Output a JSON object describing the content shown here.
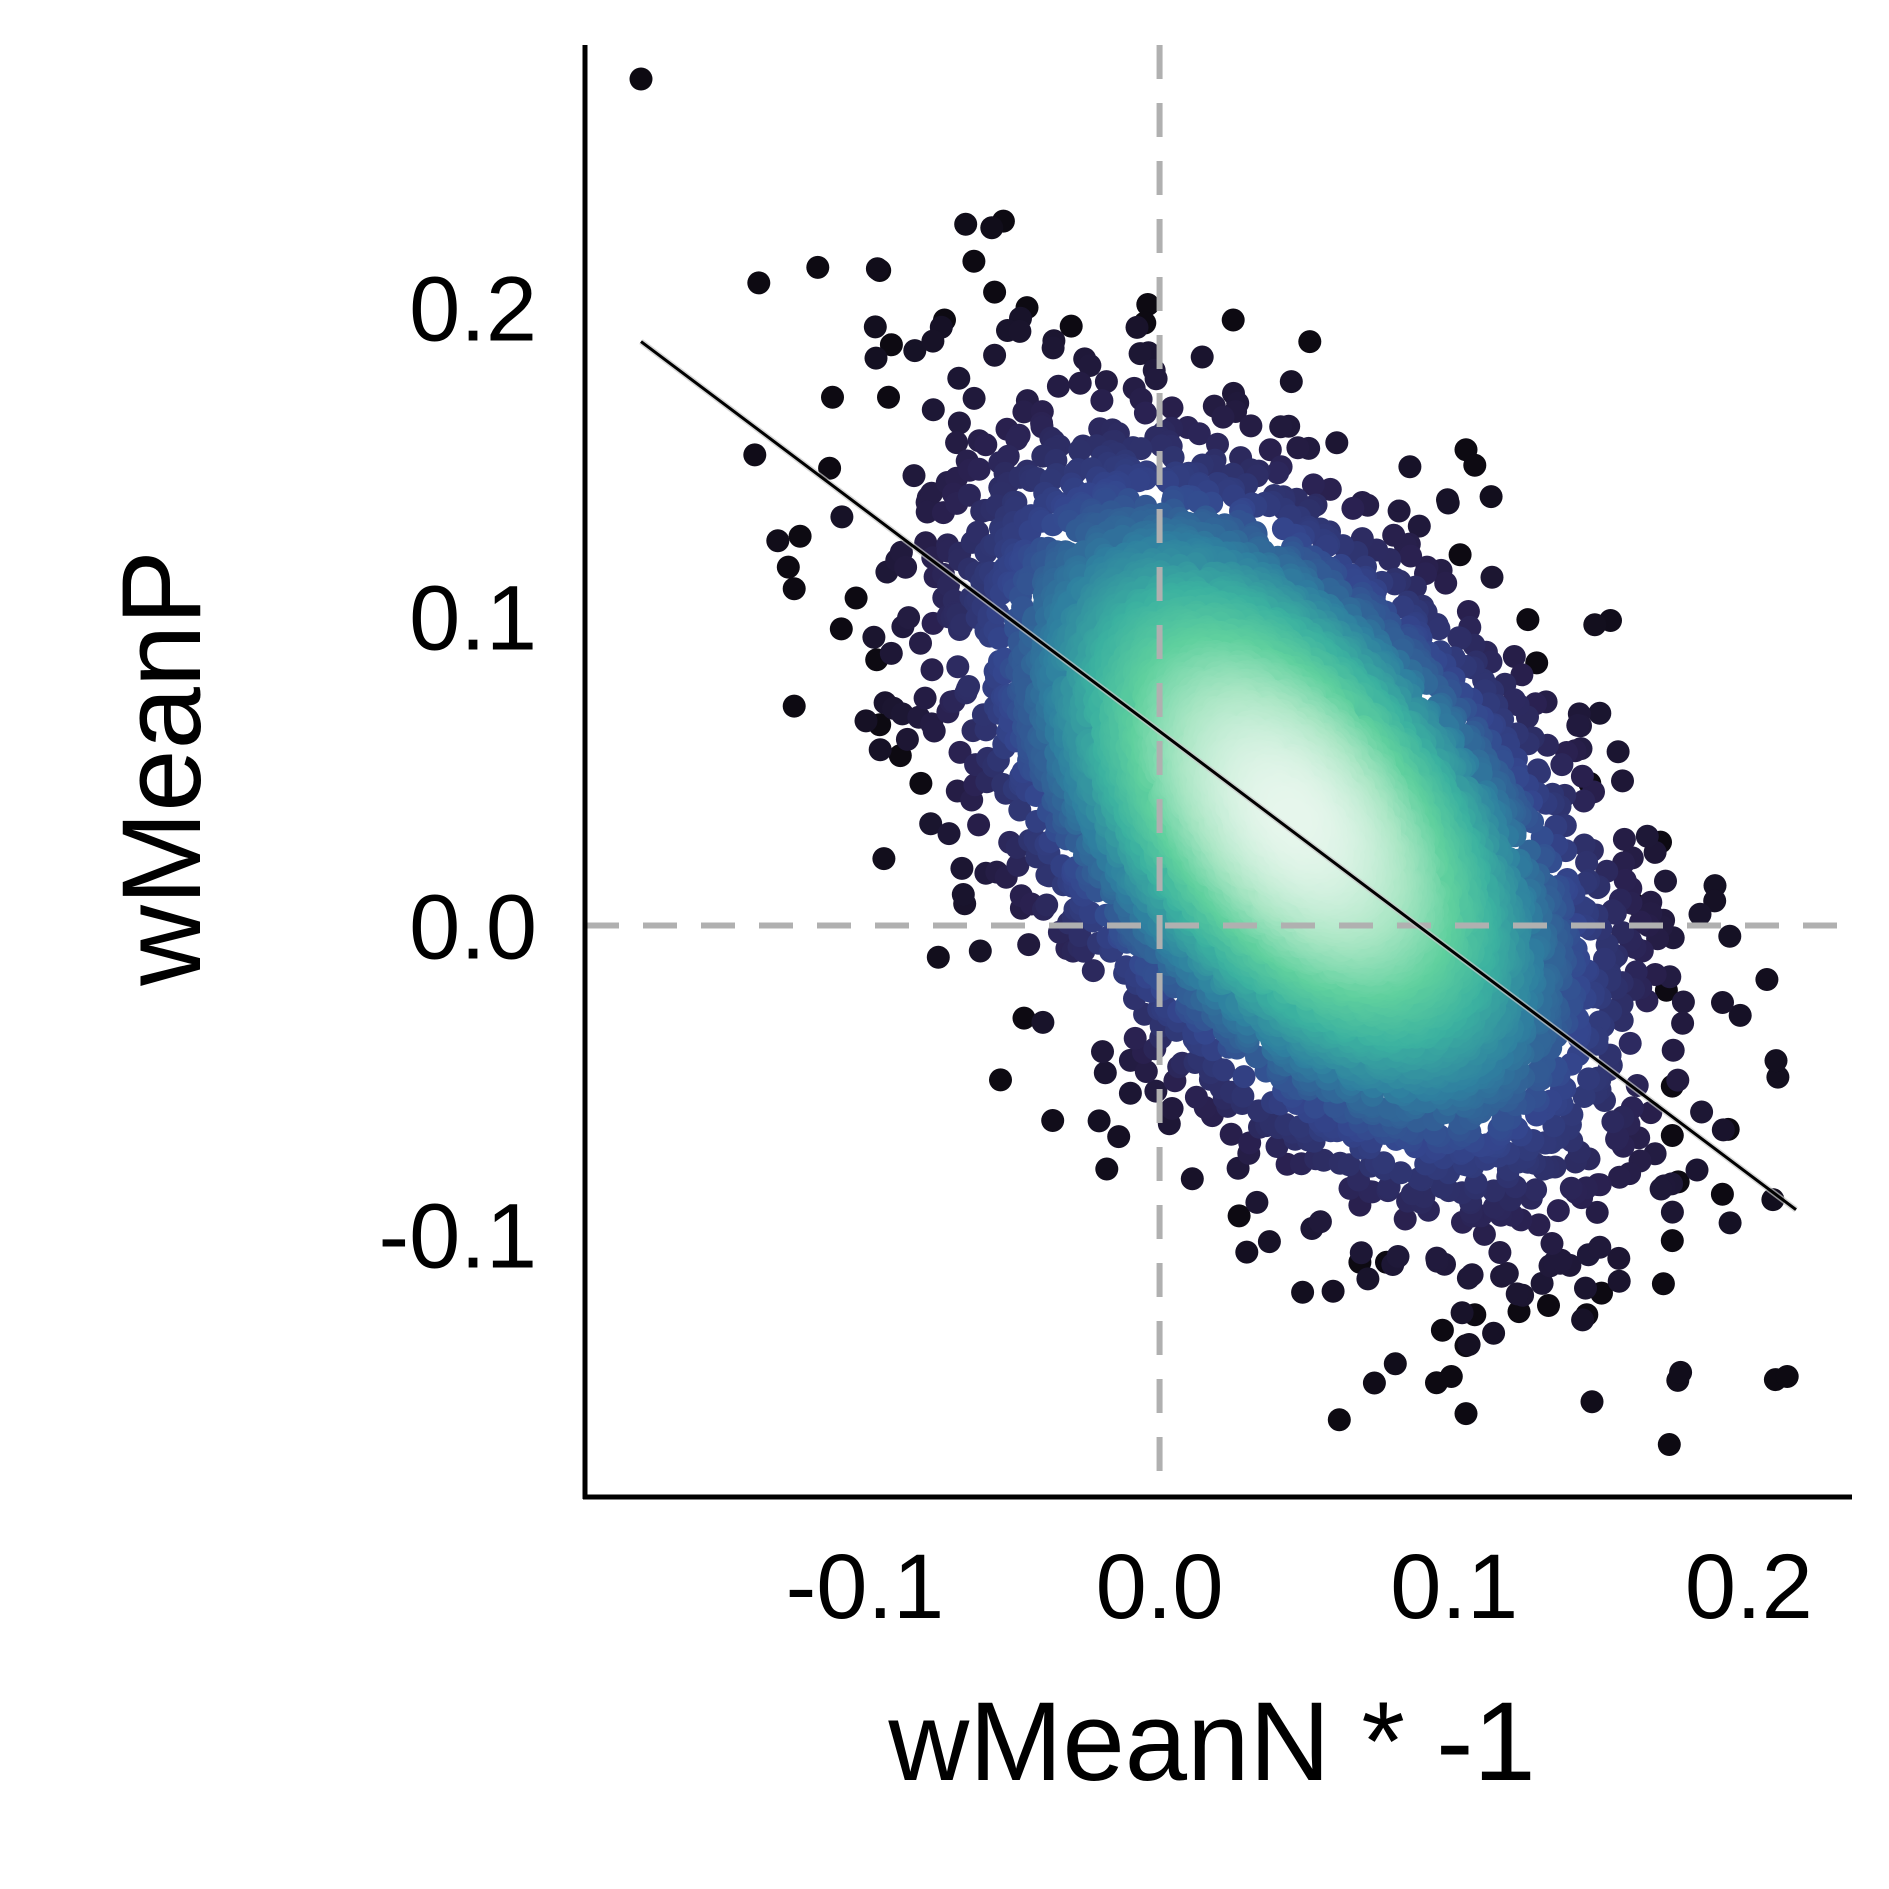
{
  "chart_data": {
    "type": "scatter",
    "xlabel": "wMeanN * -1",
    "ylabel": "wMeanP",
    "xlim": [
      -0.195,
      0.235
    ],
    "ylim": [
      -0.185,
      0.285
    ],
    "xticks": [
      {
        "value": -0.1,
        "label": "-0.1"
      },
      {
        "value": 0.0,
        "label": "0.0"
      },
      {
        "value": 0.1,
        "label": "0.1"
      },
      {
        "value": 0.2,
        "label": "0.2"
      }
    ],
    "yticks": [
      {
        "value": -0.1,
        "label": "-0.1"
      },
      {
        "value": 0.0,
        "label": "0.0"
      },
      {
        "value": 0.1,
        "label": "0.1"
      },
      {
        "value": 0.2,
        "label": "0.2"
      }
    ],
    "reference_lines": {
      "x": 0.0,
      "y": 0.0,
      "color": "#b0b0b0",
      "style": "dashed"
    },
    "regression_line": {
      "x": [
        -0.176,
        0.216
      ],
      "y": [
        0.189,
        -0.092
      ],
      "color": "#000000"
    },
    "density": {
      "center": [
        0.045,
        0.035
      ],
      "spread": [
        0.046,
        0.05
      ],
      "correlation": -0.52,
      "n_points": 9000
    },
    "outliers": [
      {
        "x": -0.176,
        "y": 0.274
      },
      {
        "x": -0.136,
        "y": 0.208
      },
      {
        "x": -0.116,
        "y": 0.213
      },
      {
        "x": -0.095,
        "y": 0.212
      },
      {
        "x": -0.053,
        "y": 0.228
      },
      {
        "x": -0.063,
        "y": 0.215
      },
      {
        "x": -0.056,
        "y": 0.205
      },
      {
        "x": -0.073,
        "y": 0.196
      },
      {
        "x": -0.045,
        "y": 0.2
      },
      {
        "x": -0.03,
        "y": 0.194
      },
      {
        "x": -0.004,
        "y": 0.201
      },
      {
        "x": -0.005,
        "y": 0.195
      },
      {
        "x": 0.025,
        "y": 0.196
      },
      {
        "x": 0.051,
        "y": 0.189
      },
      {
        "x": -0.091,
        "y": 0.188
      },
      {
        "x": -0.111,
        "y": 0.171
      },
      {
        "x": -0.092,
        "y": 0.171
      },
      {
        "x": -0.112,
        "y": 0.148
      },
      {
        "x": -0.122,
        "y": 0.126
      },
      {
        "x": -0.126,
        "y": 0.116
      },
      {
        "x": -0.124,
        "y": 0.109
      },
      {
        "x": -0.103,
        "y": 0.106
      },
      {
        "x": -0.108,
        "y": 0.096
      },
      {
        "x": -0.096,
        "y": 0.086
      },
      {
        "x": -0.124,
        "y": 0.071
      },
      {
        "x": -0.095,
        "y": 0.065
      },
      {
        "x": -0.088,
        "y": 0.055
      },
      {
        "x": -0.081,
        "y": 0.046
      },
      {
        "x": -0.046,
        "y": -0.03
      },
      {
        "x": -0.054,
        "y": -0.05
      },
      {
        "x": 0.104,
        "y": 0.154
      },
      {
        "x": 0.107,
        "y": 0.149
      },
      {
        "x": 0.102,
        "y": 0.12
      },
      {
        "x": 0.125,
        "y": 0.099
      },
      {
        "x": 0.128,
        "y": 0.085
      },
      {
        "x": 0.146,
        "y": 0.046
      },
      {
        "x": 0.17,
        "y": 0.027
      },
      {
        "x": 0.161,
        "y": 0.007
      },
      {
        "x": 0.172,
        "y": -0.021
      },
      {
        "x": 0.174,
        "y": -0.052
      },
      {
        "x": 0.174,
        "y": -0.068
      },
      {
        "x": 0.193,
        "y": -0.066
      },
      {
        "x": 0.176,
        "y": -0.083
      },
      {
        "x": 0.191,
        "y": -0.087
      },
      {
        "x": 0.174,
        "y": -0.102
      },
      {
        "x": 0.171,
        "y": -0.116
      },
      {
        "x": 0.15,
        "y": -0.119
      },
      {
        "x": 0.145,
        "y": -0.126
      },
      {
        "x": 0.132,
        "y": -0.123
      },
      {
        "x": 0.122,
        "y": -0.125
      },
      {
        "x": 0.107,
        "y": -0.126
      },
      {
        "x": 0.096,
        "y": -0.131
      },
      {
        "x": 0.104,
        "y": -0.136
      },
      {
        "x": 0.099,
        "y": -0.146
      },
      {
        "x": 0.094,
        "y": -0.148
      },
      {
        "x": 0.061,
        "y": -0.16
      },
      {
        "x": 0.104,
        "y": -0.158
      },
      {
        "x": 0.173,
        "y": -0.168
      },
      {
        "x": 0.209,
        "y": -0.147
      },
      {
        "x": 0.213,
        "y": -0.146
      },
      {
        "x": 0.027,
        "y": -0.094
      },
      {
        "x": 0.068,
        "y": -0.109
      },
      {
        "x": 0.077,
        "y": -0.109
      }
    ],
    "colormap": [
      "#0d0a12",
      "#2a2150",
      "#34468e",
      "#2f80a0",
      "#3bb1a0",
      "#5fd09e",
      "#a9e6c4",
      "#e6f6ec"
    ]
  }
}
